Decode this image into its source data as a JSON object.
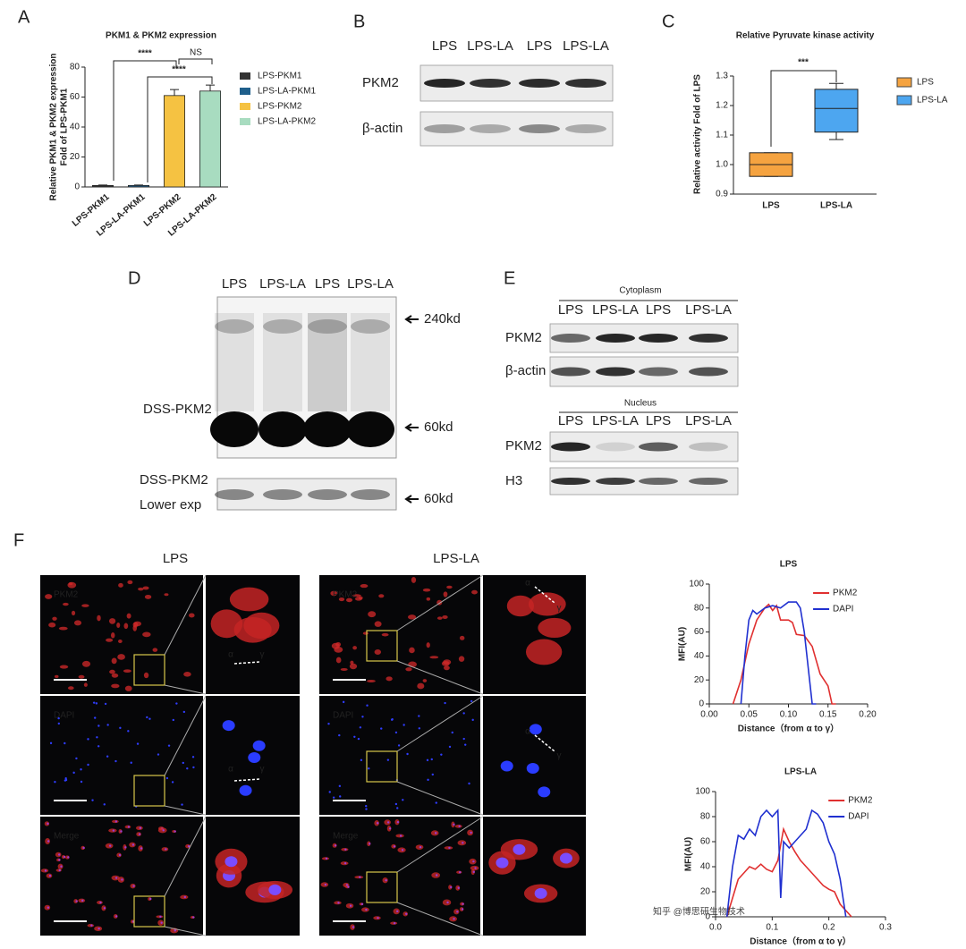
{
  "chart_data": [
    {
      "type": "bar",
      "title": "PKM1 & PKM2 expression",
      "y_label": [
        "Relative PKM1 & PKM2 expression",
        "Fold of LPS-PKM1"
      ],
      "categories": [
        "LPS-PKM1",
        "LPS-LA-PKM1",
        "LPS-PKM2",
        "LPS-LA-PKM2"
      ],
      "values": [
        1,
        1,
        61,
        64
      ],
      "errors": [
        0.3,
        0.3,
        4,
        4
      ],
      "colors": [
        "#333333",
        "#1f5f8b",
        "#f5c242",
        "#a8dcc0"
      ],
      "ylim": [
        0,
        80
      ],
      "yticks": [
        0,
        20,
        40,
        60,
        80
      ],
      "annotations": [
        "****",
        "****",
        "NS"
      ],
      "grid": false
    },
    {
      "type": "box",
      "title": "Relative Pyruvate kinase activity",
      "y_label": "Relative activity Fold of LPS",
      "categories": [
        "LPS",
        "LPS-LA"
      ],
      "values": [
        {
          "min": 0.96,
          "q1": 0.96,
          "median": 1.0,
          "q3": 1.04,
          "max": 1.04
        },
        {
          "min": 1.085,
          "q1": 1.11,
          "median": 1.19,
          "q3": 1.255,
          "max": 1.275
        }
      ],
      "colors": [
        "#f5a340",
        "#4da6f0"
      ],
      "ylim": [
        0.9,
        1.3
      ],
      "yticks": [
        0.9,
        {
          "value": 1,
          "label": "1.0"
        },
        1.1,
        1.2,
        1.3
      ],
      "annotations": [
        "***"
      ],
      "grid": false
    },
    {
      "type": "line",
      "title": "LPS",
      "x_label": "Distance（from α to γ）",
      "y_label": "MFI(AU)",
      "xlim": [
        0,
        0.2
      ],
      "xticks": [
        {
          "value": 0,
          "label": "0.00"
        },
        {
          "value": 0.05,
          "label": "0.05"
        },
        {
          "value": 0.1,
          "label": "0.10"
        },
        {
          "value": 0.15,
          "label": "0.15"
        },
        {
          "value": 0.2,
          "label": "0.20"
        }
      ],
      "ylim": [
        0,
        100
      ],
      "yticks": [
        0,
        20,
        40,
        60,
        80,
        100
      ],
      "series": [
        {
          "name": "PKM2",
          "color": "#e03030",
          "x": [
            0.03,
            0.04,
            0.05,
            0.06,
            0.07,
            0.075,
            0.08,
            0.085,
            0.09,
            0.1,
            0.105,
            0.11,
            0.12,
            0.13,
            0.14,
            0.15,
            0.155,
            0.16
          ],
          "values": [
            0,
            20,
            50,
            70,
            80,
            83,
            78,
            82,
            70,
            70,
            68,
            58,
            57,
            48,
            25,
            15,
            0,
            0
          ]
        },
        {
          "name": "DAPI",
          "color": "#2030d0",
          "x": [
            0.04,
            0.045,
            0.05,
            0.055,
            0.06,
            0.07,
            0.08,
            0.09,
            0.1,
            0.11,
            0.115,
            0.12,
            0.125,
            0.13,
            0.135
          ],
          "values": [
            0,
            40,
            70,
            78,
            75,
            80,
            82,
            80,
            85,
            85,
            80,
            60,
            30,
            0,
            0
          ]
        }
      ]
    },
    {
      "type": "line",
      "title": "LPS-LA",
      "x_label": "Distance（from α to γ）",
      "y_label": "MFI(AU)",
      "xlim": [
        0,
        0.3
      ],
      "xticks": [
        {
          "value": 0,
          "label": "0.0"
        },
        0.1,
        0.2,
        0.3
      ],
      "ylim": [
        0,
        100
      ],
      "yticks": [
        0,
        20,
        40,
        60,
        80,
        100
      ],
      "series": [
        {
          "name": "PKM2",
          "color": "#e03030",
          "x": [
            0.02,
            0.03,
            0.04,
            0.05,
            0.06,
            0.07,
            0.08,
            0.09,
            0.1,
            0.11,
            0.12,
            0.13,
            0.14,
            0.15,
            0.16,
            0.17,
            0.18,
            0.19,
            0.2,
            0.21,
            0.22,
            0.23,
            0.24
          ],
          "values": [
            0,
            15,
            30,
            35,
            40,
            38,
            42,
            38,
            36,
            45,
            70,
            60,
            52,
            45,
            40,
            35,
            30,
            25,
            22,
            20,
            10,
            5,
            0
          ]
        },
        {
          "name": "DAPI",
          "color": "#2030d0",
          "x": [
            0.02,
            0.03,
            0.04,
            0.05,
            0.06,
            0.07,
            0.08,
            0.09,
            0.1,
            0.11,
            0.115,
            0.12,
            0.13,
            0.14,
            0.15,
            0.16,
            0.17,
            0.18,
            0.19,
            0.2,
            0.21,
            0.22,
            0.23
          ],
          "values": [
            0,
            40,
            65,
            62,
            70,
            65,
            80,
            85,
            80,
            85,
            15,
            60,
            55,
            60,
            65,
            70,
            85,
            82,
            75,
            60,
            50,
            30,
            0
          ]
        }
      ]
    }
  ],
  "panel_labels": [
    "A",
    "B",
    "C",
    "D",
    "E",
    "F"
  ],
  "panel_b": {
    "lanes": [
      "LPS",
      "LPS-LA",
      "LPS",
      "LPS-LA"
    ],
    "rows": [
      "PKM2",
      "β-actin"
    ]
  },
  "panel_d": {
    "lanes": [
      "LPS",
      "LPS-LA",
      "LPS",
      "LPS-LA"
    ],
    "markers": [
      "240kd",
      "60kd",
      "60kd"
    ],
    "labels": [
      "DSS-PKM2",
      "DSS-PKM2",
      "Lower exp"
    ]
  },
  "panel_e": {
    "cytoplasm": {
      "title": "Cytoplasm",
      "lanes": [
        "LPS",
        "LPS-LA",
        "LPS",
        "LPS-LA"
      ],
      "rows": [
        "PKM2",
        "β-actin"
      ]
    },
    "nucleus": {
      "title": "Nucleus",
      "lanes": [
        "LPS",
        "LPS-LA",
        "LPS",
        "LPS-LA"
      ],
      "rows": [
        "PKM2",
        "H3"
      ]
    }
  },
  "panel_f": {
    "columns": [
      "LPS",
      "LPS-LA"
    ],
    "rows": [
      "PKM2",
      "DAPI",
      "Merge"
    ],
    "points": [
      "α",
      "γ"
    ]
  },
  "watermark": "知乎 @博思研生物技术"
}
